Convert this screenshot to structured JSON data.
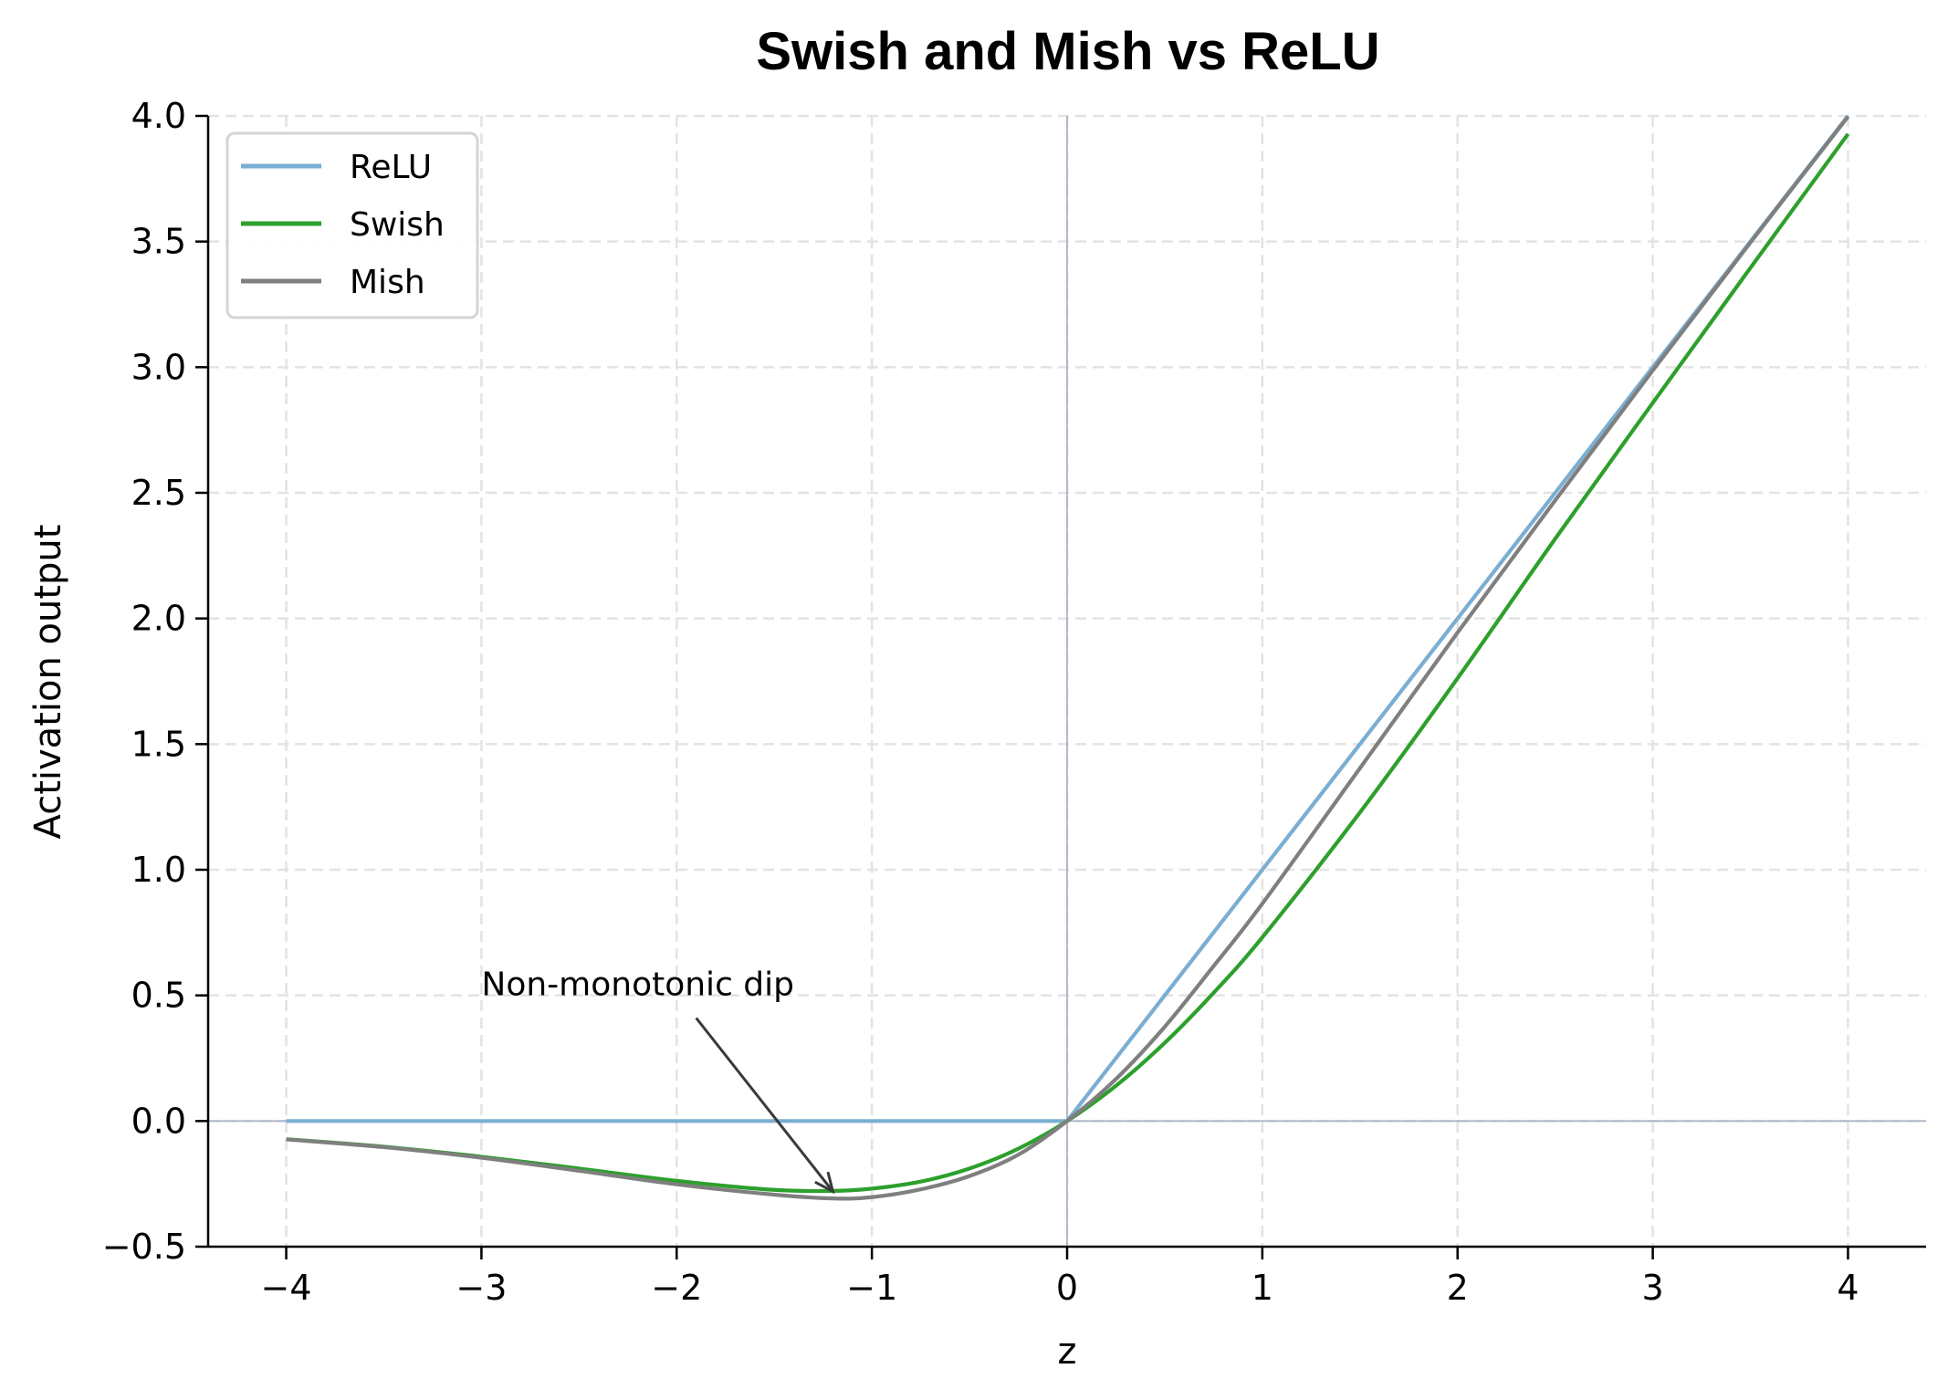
{
  "chart_data": {
    "type": "line",
    "title": "Swish and Mish vs ReLU",
    "xlabel": "z",
    "ylabel": "Activation output",
    "xlim": [
      -4.4,
      4.4
    ],
    "ylim": [
      -0.5,
      4.0
    ],
    "xticks": [
      -4,
      -3,
      -2,
      -1,
      0,
      1,
      2,
      3,
      4
    ],
    "xtick_labels": [
      "−4",
      "−3",
      "−2",
      "−1",
      "0",
      "1",
      "2",
      "3",
      "4"
    ],
    "yticks": [
      -0.5,
      0.0,
      0.5,
      1.0,
      1.5,
      2.0,
      2.5,
      3.0,
      3.5,
      4.0
    ],
    "ytick_labels": [
      "−0.5",
      "0.0",
      "0.5",
      "1.0",
      "1.5",
      "2.0",
      "2.5",
      "3.0",
      "3.5",
      "4.0"
    ],
    "grid": true,
    "grid_style": "dashed",
    "legend_position": "upper left",
    "reference_lines": {
      "horizontal_y": 0,
      "vertical_x": 0,
      "color": "#a9b6c8"
    },
    "x": [
      -4.0,
      -3.5,
      -3.0,
      -2.5,
      -2.0,
      -1.5,
      -1.2,
      -1.0,
      -0.75,
      -0.5,
      -0.25,
      0.0,
      0.25,
      0.5,
      0.75,
      1.0,
      1.5,
      2.0,
      2.5,
      3.0,
      3.5,
      4.0
    ],
    "series": [
      {
        "name": "ReLU",
        "color": "#7aaed3",
        "values": [
          0.0,
          0.0,
          0.0,
          0.0,
          0.0,
          0.0,
          0.0,
          0.0,
          0.0,
          0.0,
          0.0,
          0.0,
          0.25,
          0.5,
          0.75,
          1.0,
          1.5,
          2.0,
          2.5,
          3.0,
          3.5,
          4.0
        ]
      },
      {
        "name": "Swish",
        "color": "#2ca02c",
        "values": [
          -0.072,
          -0.102,
          -0.142,
          -0.189,
          -0.238,
          -0.274,
          -0.278,
          -0.269,
          -0.241,
          -0.189,
          -0.11,
          0.0,
          0.14,
          0.311,
          0.51,
          0.731,
          1.228,
          1.762,
          2.317,
          2.858,
          3.395,
          3.928
        ]
      },
      {
        "name": "Mish",
        "color": "#7f7f7f",
        "values": [
          -0.073,
          -0.104,
          -0.146,
          -0.198,
          -0.252,
          -0.293,
          -0.308,
          -0.303,
          -0.272,
          -0.219,
          -0.134,
          0.0,
          0.167,
          0.375,
          0.616,
          0.865,
          1.404,
          1.944,
          2.47,
          2.987,
          3.496,
          3.997
        ]
      }
    ],
    "annotations": [
      {
        "text": "Non-monotonic dip",
        "text_xy": [
          -3.0,
          0.5
        ],
        "arrow_start": [
          -1.9,
          0.41
        ],
        "arrow_end": [
          -1.2,
          -0.28
        ]
      }
    ]
  },
  "texts": {
    "title": "Swish and Mish vs ReLU",
    "xlabel": "z",
    "ylabel": "Activation output",
    "annotation": "Non-monotonic dip",
    "legend": [
      "ReLU",
      "Swish",
      "Mish"
    ]
  }
}
